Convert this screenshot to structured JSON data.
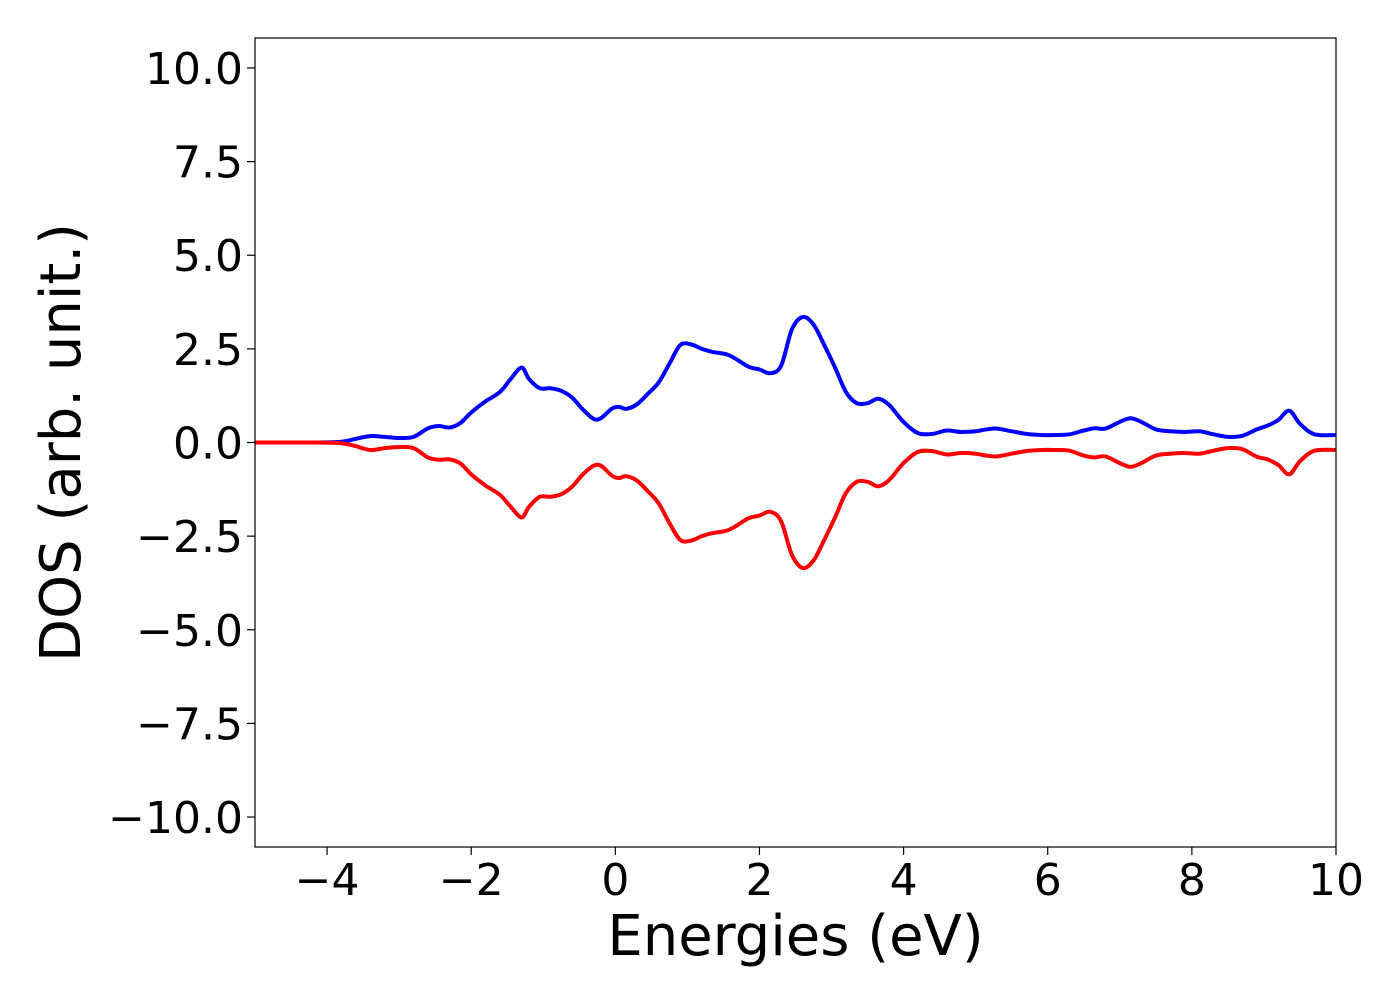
{
  "chart_data": {
    "type": "line",
    "xlabel": "Energies (eV)",
    "ylabel": "DOS (arb. unit.)",
    "xlim": [
      -5,
      10
    ],
    "ylim": [
      -10.8,
      10.8
    ],
    "xticks": [
      -4,
      -2,
      0,
      2,
      4,
      6,
      8,
      10
    ],
    "xtick_labels": [
      "−4",
      "−2",
      "0",
      "2",
      "4",
      "6",
      "8",
      "10"
    ],
    "yticks": [
      10,
      7.5,
      5,
      2.5,
      0,
      -2.5,
      -5,
      -7.5,
      -10
    ],
    "ytick_labels": [
      "10.0",
      "7.5",
      "5.0",
      "2.5",
      "0.0",
      "−2.5",
      "−5.0",
      "−7.5",
      "−10.0"
    ],
    "grid": false,
    "series": [
      {
        "color": "#0000ff",
        "x": [
          -5,
          -4.2,
          -3.8,
          -3.6,
          -3.4,
          -3.2,
          -3.0,
          -2.8,
          -2.6,
          -2.45,
          -2.3,
          -2.15,
          -2.0,
          -1.8,
          -1.6,
          -1.45,
          -1.3,
          -1.2,
          -1.05,
          -0.9,
          -0.75,
          -0.6,
          -0.45,
          -0.3,
          -0.2,
          -0.05,
          0.05,
          0.15,
          0.3,
          0.45,
          0.6,
          0.75,
          0.9,
          1.05,
          1.2,
          1.35,
          1.55,
          1.7,
          1.85,
          2.0,
          2.15,
          2.3,
          2.45,
          2.6,
          2.75,
          2.9,
          3.05,
          3.2,
          3.35,
          3.5,
          3.65,
          3.8,
          4.0,
          4.2,
          4.4,
          4.6,
          4.8,
          5.0,
          5.15,
          5.3,
          5.5,
          5.7,
          5.9,
          6.1,
          6.3,
          6.5,
          6.65,
          6.8,
          7.0,
          7.15,
          7.3,
          7.5,
          7.7,
          7.9,
          8.1,
          8.3,
          8.5,
          8.7,
          8.9,
          9.05,
          9.2,
          9.35,
          9.5,
          9.7,
          10.0
        ],
        "values": [
          0,
          0,
          0.02,
          0.1,
          0.17,
          0.15,
          0.12,
          0.15,
          0.38,
          0.44,
          0.4,
          0.52,
          0.8,
          1.1,
          1.35,
          1.7,
          2.0,
          1.7,
          1.45,
          1.45,
          1.38,
          1.2,
          0.88,
          0.63,
          0.65,
          0.9,
          0.95,
          0.9,
          1.02,
          1.3,
          1.6,
          2.1,
          2.6,
          2.62,
          2.5,
          2.42,
          2.35,
          2.2,
          2.02,
          1.95,
          1.85,
          2.05,
          3.02,
          3.35,
          3.15,
          2.6,
          2.0,
          1.35,
          1.05,
          1.05,
          1.17,
          1.0,
          0.55,
          0.25,
          0.23,
          0.32,
          0.28,
          0.3,
          0.35,
          0.37,
          0.3,
          0.23,
          0.2,
          0.2,
          0.22,
          0.32,
          0.38,
          0.37,
          0.55,
          0.65,
          0.55,
          0.35,
          0.3,
          0.28,
          0.3,
          0.22,
          0.15,
          0.18,
          0.35,
          0.45,
          0.6,
          0.85,
          0.5,
          0.22,
          0.2
        ]
      },
      {
        "color": "#ff0000",
        "x": [
          -5,
          -4.2,
          -3.8,
          -3.6,
          -3.4,
          -3.2,
          -3.0,
          -2.8,
          -2.6,
          -2.45,
          -2.3,
          -2.15,
          -2.0,
          -1.8,
          -1.6,
          -1.45,
          -1.3,
          -1.2,
          -1.05,
          -0.9,
          -0.75,
          -0.6,
          -0.45,
          -0.3,
          -0.2,
          -0.05,
          0.05,
          0.15,
          0.3,
          0.45,
          0.6,
          0.75,
          0.9,
          1.05,
          1.2,
          1.35,
          1.55,
          1.7,
          1.85,
          2.0,
          2.15,
          2.3,
          2.45,
          2.6,
          2.75,
          2.9,
          3.05,
          3.2,
          3.35,
          3.5,
          3.65,
          3.8,
          4.0,
          4.2,
          4.4,
          4.6,
          4.8,
          5.0,
          5.15,
          5.3,
          5.5,
          5.7,
          5.9,
          6.1,
          6.3,
          6.5,
          6.65,
          6.8,
          7.0,
          7.15,
          7.3,
          7.5,
          7.7,
          7.9,
          8.1,
          8.3,
          8.5,
          8.7,
          8.9,
          9.05,
          9.2,
          9.35,
          9.5,
          9.7,
          10.0
        ],
        "values": [
          0,
          0,
          -0.02,
          -0.1,
          -0.2,
          -0.15,
          -0.12,
          -0.15,
          -0.4,
          -0.46,
          -0.45,
          -0.56,
          -0.85,
          -1.15,
          -1.4,
          -1.72,
          -2.0,
          -1.72,
          -1.45,
          -1.45,
          -1.38,
          -1.18,
          -0.85,
          -0.62,
          -0.62,
          -0.88,
          -0.95,
          -0.9,
          -1.02,
          -1.3,
          -1.62,
          -2.15,
          -2.6,
          -2.62,
          -2.5,
          -2.42,
          -2.35,
          -2.2,
          -2.02,
          -1.95,
          -1.85,
          -2.1,
          -3.0,
          -3.35,
          -3.15,
          -2.6,
          -2.0,
          -1.35,
          -1.05,
          -1.05,
          -1.17,
          -1.0,
          -0.55,
          -0.25,
          -0.23,
          -0.32,
          -0.28,
          -0.3,
          -0.35,
          -0.37,
          -0.3,
          -0.23,
          -0.2,
          -0.2,
          -0.22,
          -0.35,
          -0.4,
          -0.37,
          -0.55,
          -0.65,
          -0.55,
          -0.35,
          -0.3,
          -0.28,
          -0.3,
          -0.22,
          -0.15,
          -0.18,
          -0.38,
          -0.45,
          -0.6,
          -0.85,
          -0.5,
          -0.22,
          -0.2
        ]
      }
    ]
  }
}
